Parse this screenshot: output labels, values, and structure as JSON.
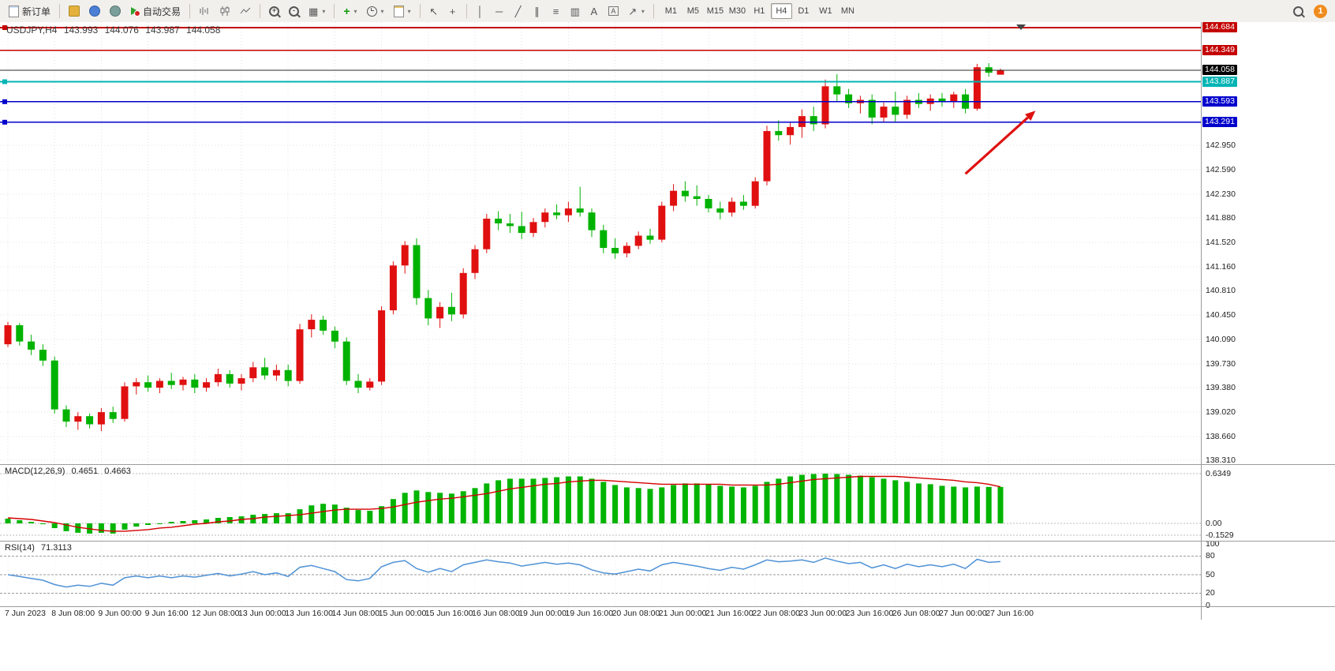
{
  "window": {
    "badge_count": "1"
  },
  "toolbar": {
    "new_order_label": "新订单",
    "autotrading_label": "自动交易",
    "timeframes": [
      "M1",
      "M5",
      "M15",
      "M30",
      "H1",
      "H4",
      "D1",
      "W1",
      "MN"
    ],
    "active_timeframe": "H4"
  },
  "chart_header": {
    "symbol": "USDJPY,H4",
    "open": "143.993",
    "high": "144.076",
    "low": "143.987",
    "close": "144.058"
  },
  "indicators": {
    "macd_label": "MACD(12,26,9)",
    "macd_value": "0.4651",
    "macd_signal_value": "0.4663",
    "rsi_label": "RSI(14)",
    "rsi_value": "71.3113"
  },
  "price_axis": {
    "special": [
      {
        "text": "144.684",
        "price": 144.684,
        "bg": "#c40000"
      },
      {
        "text": "144.349",
        "price": 144.349,
        "bg": "#c40000"
      },
      {
        "text": "144.058",
        "price": 144.058,
        "bg": "#000000"
      },
      {
        "text": "143.887",
        "price": 143.887,
        "bg": "#00b4b4"
      },
      {
        "text": "143.593",
        "price": 143.593,
        "bg": "#0000cc"
      },
      {
        "text": "143.291",
        "price": 143.291,
        "bg": "#0000cc"
      }
    ],
    "plain": [
      "142.950",
      "142.590",
      "142.230",
      "141.880",
      "141.520",
      "141.160",
      "140.810",
      "140.450",
      "140.090",
      "139.730",
      "139.380",
      "139.020",
      "138.660",
      "138.310"
    ],
    "macd": [
      "0.6349",
      "0.00",
      "-0.1529"
    ],
    "rsi": [
      "100",
      "80",
      "50",
      "20",
      "0"
    ]
  },
  "time_axis": [
    "7 Jun 2023",
    "8 Jun 08:00",
    "9 Jun 00:00",
    "9 Jun 16:00",
    "12 Jun 08:00",
    "13 Jun 00:00",
    "13 Jun 16:00",
    "14 Jun 08:00",
    "15 Jun 00:00",
    "15 Jun 16:00",
    "16 Jun 08:00",
    "19 Jun 00:00",
    "19 Jun 16:00",
    "20 Jun 08:00",
    "21 Jun 00:00",
    "21 Jun 16:00",
    "22 Jun 08:00",
    "23 Jun 00:00",
    "23 Jun 16:00",
    "26 Jun 08:00",
    "27 Jun 00:00",
    "27 Jun 16:00"
  ],
  "chart_data": {
    "type": "candlestick",
    "symbol": "USDJPY",
    "timeframe": "H4",
    "up_color": "#e01010",
    "down_color": "#00b200",
    "ylim": [
      138.242,
      144.765
    ],
    "candles": [
      [
        140.02,
        140.35,
        139.98,
        140.3
      ],
      [
        140.3,
        140.33,
        140.0,
        140.06
      ],
      [
        140.06,
        140.16,
        139.86,
        139.94
      ],
      [
        139.94,
        140.02,
        139.7,
        139.78
      ],
      [
        139.78,
        139.84,
        139.0,
        139.06
      ],
      [
        139.06,
        139.12,
        138.8,
        138.88
      ],
      [
        138.88,
        139.02,
        138.76,
        138.96
      ],
      [
        138.96,
        139.0,
        138.78,
        138.84
      ],
      [
        138.84,
        139.08,
        138.74,
        139.02
      ],
      [
        139.02,
        139.1,
        138.86,
        138.92
      ],
      [
        138.92,
        139.46,
        138.88,
        139.4
      ],
      [
        139.4,
        139.52,
        139.28,
        139.46
      ],
      [
        139.46,
        139.56,
        139.32,
        139.38
      ],
      [
        139.38,
        139.52,
        139.3,
        139.48
      ],
      [
        139.48,
        139.6,
        139.36,
        139.42
      ],
      [
        139.42,
        139.54,
        139.34,
        139.5
      ],
      [
        139.5,
        139.58,
        139.3,
        139.38
      ],
      [
        139.38,
        139.52,
        139.32,
        139.46
      ],
      [
        139.46,
        139.66,
        139.4,
        139.58
      ],
      [
        139.58,
        139.64,
        139.38,
        139.44
      ],
      [
        139.44,
        139.58,
        139.34,
        139.52
      ],
      [
        139.52,
        139.76,
        139.46,
        139.68
      ],
      [
        139.68,
        139.82,
        139.5,
        139.56
      ],
      [
        139.56,
        139.72,
        139.48,
        139.64
      ],
      [
        139.64,
        139.72,
        139.4,
        139.48
      ],
      [
        139.48,
        140.32,
        139.44,
        140.24
      ],
      [
        140.24,
        140.46,
        140.12,
        140.38
      ],
      [
        140.38,
        140.44,
        140.16,
        140.22
      ],
      [
        140.22,
        140.28,
        139.96,
        140.06
      ],
      [
        140.06,
        140.12,
        139.42,
        139.48
      ],
      [
        139.48,
        139.58,
        139.3,
        139.38
      ],
      [
        139.38,
        139.52,
        139.34,
        139.47
      ],
      [
        139.47,
        140.58,
        139.42,
        140.52
      ],
      [
        140.52,
        141.24,
        140.46,
        141.18
      ],
      [
        141.18,
        141.54,
        141.06,
        141.48
      ],
      [
        141.48,
        141.58,
        140.6,
        140.7
      ],
      [
        140.7,
        140.82,
        140.3,
        140.4
      ],
      [
        140.4,
        140.64,
        140.26,
        140.57
      ],
      [
        140.57,
        140.78,
        140.36,
        140.46
      ],
      [
        140.46,
        141.14,
        140.4,
        141.07
      ],
      [
        141.07,
        141.48,
        140.98,
        141.42
      ],
      [
        141.42,
        141.94,
        141.36,
        141.87
      ],
      [
        141.87,
        141.98,
        141.7,
        141.8
      ],
      [
        141.8,
        141.94,
        141.66,
        141.76
      ],
      [
        141.76,
        141.97,
        141.57,
        141.66
      ],
      [
        141.66,
        141.88,
        141.6,
        141.82
      ],
      [
        141.82,
        142.02,
        141.74,
        141.96
      ],
      [
        141.96,
        142.08,
        141.86,
        141.92
      ],
      [
        141.92,
        142.12,
        141.82,
        142.02
      ],
      [
        142.02,
        142.34,
        141.9,
        141.96
      ],
      [
        141.96,
        142.02,
        141.6,
        141.7
      ],
      [
        141.7,
        141.78,
        141.36,
        141.44
      ],
      [
        141.44,
        141.58,
        141.28,
        141.36
      ],
      [
        141.36,
        141.52,
        141.3,
        141.47
      ],
      [
        141.47,
        141.68,
        141.42,
        141.62
      ],
      [
        141.62,
        141.72,
        141.5,
        141.56
      ],
      [
        141.56,
        142.12,
        141.52,
        142.06
      ],
      [
        142.06,
        142.38,
        141.98,
        142.28
      ],
      [
        142.28,
        142.42,
        142.12,
        142.2
      ],
      [
        142.2,
        142.36,
        142.06,
        142.16
      ],
      [
        142.16,
        142.22,
        141.96,
        142.02
      ],
      [
        142.02,
        142.12,
        141.86,
        141.96
      ],
      [
        141.96,
        142.18,
        141.9,
        142.12
      ],
      [
        142.12,
        142.22,
        142.0,
        142.06
      ],
      [
        142.06,
        142.48,
        142.02,
        142.42
      ],
      [
        142.42,
        143.24,
        142.36,
        143.16
      ],
      [
        143.16,
        143.32,
        143.02,
        143.1
      ],
      [
        143.1,
        143.28,
        142.96,
        143.22
      ],
      [
        143.22,
        143.48,
        143.06,
        143.38
      ],
      [
        143.38,
        143.52,
        143.16,
        143.26
      ],
      [
        143.26,
        143.92,
        143.2,
        143.82
      ],
      [
        143.82,
        144.0,
        143.6,
        143.7
      ],
      [
        143.7,
        143.78,
        143.5,
        143.57
      ],
      [
        143.57,
        143.68,
        143.42,
        143.62
      ],
      [
        143.62,
        143.7,
        143.26,
        143.36
      ],
      [
        143.36,
        143.58,
        143.3,
        143.52
      ],
      [
        143.52,
        143.74,
        143.3,
        143.4
      ],
      [
        143.4,
        143.68,
        143.34,
        143.62
      ],
      [
        143.62,
        143.72,
        143.5,
        143.56
      ],
      [
        143.56,
        143.7,
        143.46,
        143.64
      ],
      [
        143.64,
        143.72,
        143.52,
        143.59
      ],
      [
        143.59,
        143.74,
        143.5,
        143.7
      ],
      [
        143.7,
        143.78,
        143.42,
        143.49
      ],
      [
        143.49,
        144.15,
        143.46,
        144.1
      ],
      [
        144.1,
        144.16,
        143.96,
        144.02
      ],
      [
        143.99,
        144.08,
        143.99,
        144.06
      ]
    ],
    "hlines": [
      {
        "price": 144.684,
        "color": "#c40000",
        "width": 1.6,
        "handle": true
      },
      {
        "price": 144.349,
        "color": "#c40000",
        "width": 1.6,
        "handle": false
      },
      {
        "price": 144.058,
        "color": "#2b2b2b",
        "width": 1,
        "handle": false
      },
      {
        "price": 143.887,
        "color": "#00b4b4",
        "width": 1.6,
        "handle": true
      },
      {
        "price": 143.593,
        "color": "#0000cc",
        "width": 1.6,
        "handle": true
      },
      {
        "price": 143.291,
        "color": "#0000cc",
        "width": 1.6,
        "handle": true
      }
    ],
    "annotation_arrow": {
      "from": {
        "i": 82,
        "price": 142.53
      },
      "to": {
        "i": 88,
        "price": 143.46
      },
      "color": "#e01010"
    },
    "macd": {
      "params": "12,26,9",
      "range": [
        -0.1529,
        0.6349
      ],
      "histogram_color": "#00b400",
      "signal_color": "#d40000",
      "main": [
        0.06,
        0.04,
        0.02,
        -0.01,
        -0.06,
        -0.1,
        -0.12,
        -0.13,
        -0.12,
        -0.13,
        -0.08,
        -0.04,
        -0.02,
        0.0,
        0.02,
        0.03,
        0.04,
        0.05,
        0.07,
        0.08,
        0.09,
        0.11,
        0.12,
        0.13,
        0.13,
        0.18,
        0.23,
        0.25,
        0.24,
        0.2,
        0.17,
        0.16,
        0.22,
        0.31,
        0.39,
        0.42,
        0.4,
        0.39,
        0.38,
        0.41,
        0.45,
        0.51,
        0.55,
        0.57,
        0.57,
        0.57,
        0.58,
        0.59,
        0.6,
        0.6,
        0.57,
        0.53,
        0.49,
        0.46,
        0.45,
        0.44,
        0.46,
        0.49,
        0.51,
        0.51,
        0.5,
        0.48,
        0.47,
        0.46,
        0.48,
        0.53,
        0.57,
        0.6,
        0.62,
        0.63,
        0.6349,
        0.63,
        0.62,
        0.61,
        0.59,
        0.57,
        0.55,
        0.53,
        0.51,
        0.5,
        0.48,
        0.47,
        0.46,
        0.47,
        0.466,
        0.4651
      ],
      "signal": [
        0.07,
        0.06,
        0.05,
        0.03,
        0.01,
        -0.02,
        -0.05,
        -0.07,
        -0.09,
        -0.1,
        -0.1,
        -0.09,
        -0.08,
        -0.06,
        -0.05,
        -0.03,
        -0.01,
        0.0,
        0.02,
        0.03,
        0.05,
        0.06,
        0.08,
        0.09,
        0.1,
        0.11,
        0.13,
        0.15,
        0.17,
        0.18,
        0.18,
        0.18,
        0.19,
        0.21,
        0.24,
        0.27,
        0.29,
        0.31,
        0.32,
        0.34,
        0.36,
        0.38,
        0.41,
        0.44,
        0.46,
        0.48,
        0.5,
        0.51,
        0.53,
        0.54,
        0.55,
        0.55,
        0.54,
        0.53,
        0.52,
        0.51,
        0.5,
        0.5,
        0.5,
        0.5,
        0.5,
        0.5,
        0.49,
        0.49,
        0.49,
        0.49,
        0.5,
        0.52,
        0.54,
        0.56,
        0.57,
        0.58,
        0.59,
        0.6,
        0.6,
        0.6,
        0.6,
        0.59,
        0.58,
        0.57,
        0.56,
        0.55,
        0.53,
        0.52,
        0.5,
        0.4663
      ]
    },
    "rsi": {
      "period": 14,
      "range": [
        0,
        100
      ],
      "levels": [
        80,
        50,
        20
      ],
      "line_color": "#4f92d6",
      "values": [
        50,
        47,
        44,
        41,
        34,
        30,
        33,
        31,
        36,
        33,
        45,
        48,
        45,
        48,
        45,
        48,
        46,
        49,
        52,
        48,
        51,
        55,
        50,
        53,
        47,
        62,
        65,
        60,
        55,
        42,
        40,
        44,
        63,
        70,
        73,
        60,
        54,
        60,
        55,
        66,
        70,
        74,
        71,
        69,
        64,
        67,
        70,
        67,
        69,
        66,
        58,
        53,
        51,
        55,
        59,
        56,
        66,
        70,
        67,
        64,
        60,
        57,
        62,
        59,
        66,
        74,
        71,
        72,
        74,
        70,
        77,
        72,
        68,
        70,
        61,
        66,
        60,
        67,
        63,
        66,
        63,
        67,
        60,
        75,
        70,
        71.31
      ]
    }
  }
}
